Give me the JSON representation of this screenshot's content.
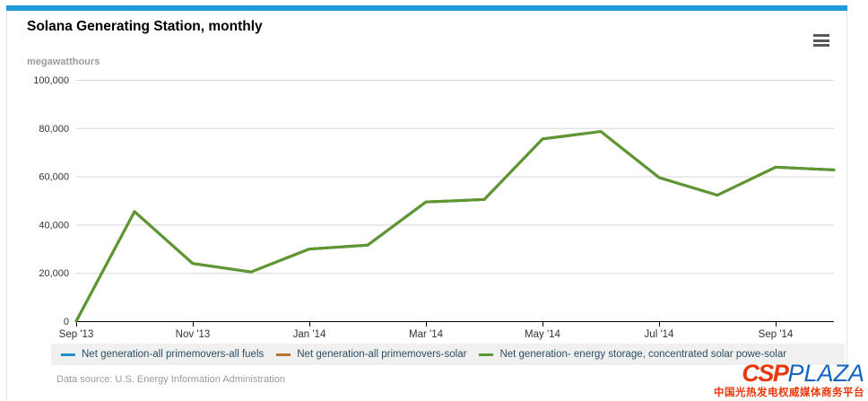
{
  "widget": {
    "title": "Solana Generating Station, monthly",
    "y_axis_title": "megawatthours",
    "menu_icon": "hamburger-menu-icon"
  },
  "chart_data": {
    "type": "line",
    "title": "Solana Generating Station, monthly",
    "ylabel": "megawatthours",
    "xlabel": "",
    "x": [
      "Sep '13",
      "Oct '13",
      "Nov '13",
      "Dec '13",
      "Jan '14",
      "Feb '14",
      "Mar '14",
      "Apr '14",
      "May '14",
      "Jun '14",
      "Jul '14",
      "Aug '14",
      "Sep '14",
      "Oct '14"
    ],
    "x_tick_labels": [
      "Sep '13",
      "Nov '13",
      "Jan '14",
      "Mar '14",
      "May '14",
      "Jul '14",
      "Sep '14"
    ],
    "ylim": [
      0,
      100000
    ],
    "y_ticks": [
      0,
      20000,
      40000,
      60000,
      80000,
      100000
    ],
    "grid": true,
    "legend_position": "bottom",
    "series": [
      {
        "name": "Net generation-all primemovers-all fuels",
        "color": "#1e8fc9",
        "values": [
          0,
          45400,
          23900,
          20400,
          29900,
          31500,
          49400,
          50400,
          75500,
          78600,
          59500,
          52200,
          63800,
          62700
        ]
      },
      {
        "name": "Net generation-all primemovers-solar",
        "color": "#bd732a",
        "values": [
          0,
          45400,
          23900,
          20400,
          29900,
          31500,
          49400,
          50400,
          75500,
          78600,
          59500,
          52200,
          63800,
          62700
        ]
      },
      {
        "name": "Net generation- energy storage, concentrated solar powe-solar",
        "color": "#5d9732",
        "values": [
          0,
          45400,
          23900,
          20400,
          29900,
          31500,
          49400,
          50400,
          75500,
          78600,
          59500,
          52200,
          63800,
          62700
        ]
      }
    ]
  },
  "footer": {
    "data_source": "Data source: U.S. Energy Information Administration"
  },
  "watermark": {
    "csp": "CSP",
    "plaza": "PLAZA",
    "tagline": "中国光热发电权威媒体商务平台",
    "csp_color": "#e8380d",
    "plaza_color": "#1565c0"
  },
  "colors": {
    "accent_bar": "#1f99d7",
    "legend_background": "#f0f0f0",
    "gridline": "#d8d8d8",
    "axis_text": "#333333"
  }
}
